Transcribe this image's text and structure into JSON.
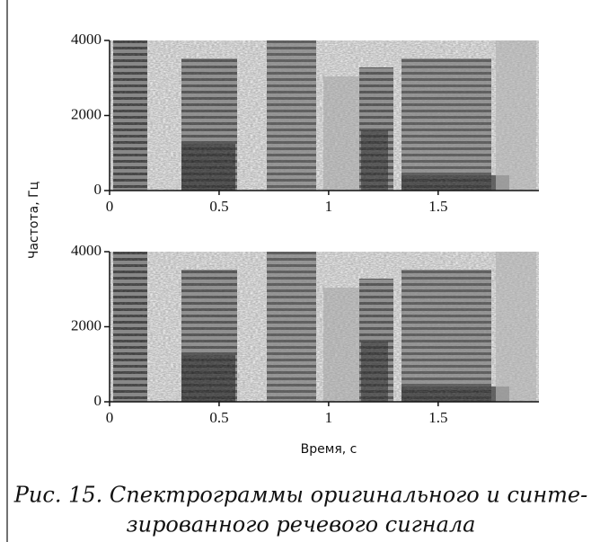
{
  "chart_data": [
    {
      "type": "spectrogram",
      "ylabel": "Частота, Гц",
      "xlim": [
        0,
        1.96
      ],
      "ylim": [
        0,
        4000
      ],
      "xticks": [
        0,
        0.5,
        1,
        1.5
      ],
      "yticks": [
        0,
        2000,
        4000
      ]
    },
    {
      "type": "spectrogram",
      "xlabel": "Время, с",
      "xlim": [
        0,
        1.96
      ],
      "ylim": [
        0,
        4000
      ],
      "xticks": [
        0,
        0.5,
        1,
        1.5
      ],
      "yticks": [
        0,
        2000,
        4000
      ]
    }
  ],
  "caption": [
    "Рис. 15. Спектрограммы оригинального и синте-",
    "зированного речевого сигнала"
  ]
}
